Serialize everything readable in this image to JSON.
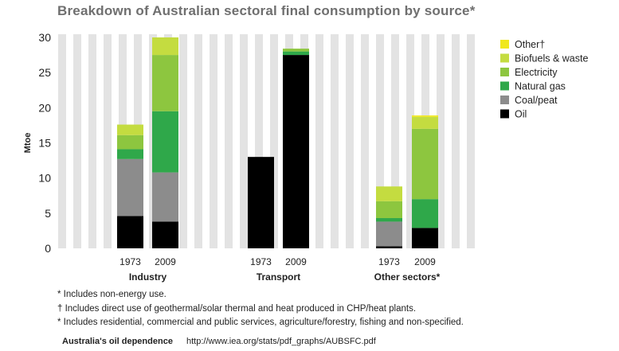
{
  "chart_data": {
    "type": "bar",
    "stacked": true,
    "title": "Breakdown of Australian sectoral final consumption by source*",
    "ylabel": "Mtoe",
    "ylim": [
      0,
      30
    ],
    "yticks": [
      0,
      5,
      10,
      15,
      20,
      25,
      30
    ],
    "groups": [
      "Industry",
      "Transport",
      "Other sectors*"
    ],
    "bar_labels": [
      "1973",
      "2009"
    ],
    "series": [
      {
        "name": "Oil",
        "color": "#000000",
        "values": [
          [
            4.6,
            3.8
          ],
          [
            13.0,
            27.5
          ],
          [
            0.3,
            2.9
          ]
        ]
      },
      {
        "name": "Coal/peat",
        "color": "#8c8c8c",
        "values": [
          [
            8.1,
            7.0
          ],
          [
            0,
            0
          ],
          [
            3.5,
            0
          ]
        ]
      },
      {
        "name": "Natural gas",
        "color": "#2fa84a",
        "values": [
          [
            1.4,
            8.7
          ],
          [
            0,
            0.5
          ],
          [
            0.5,
            4.1
          ]
        ]
      },
      {
        "name": "Electricity",
        "color": "#8dc63f",
        "values": [
          [
            2.0,
            8.0
          ],
          [
            0,
            0.4
          ],
          [
            2.4,
            10.0
          ]
        ]
      },
      {
        "name": "Biofuels & waste",
        "color": "#c4dc40",
        "values": [
          [
            1.5,
            2.9
          ],
          [
            0,
            0
          ],
          [
            2.1,
            1.7
          ]
        ]
      },
      {
        "name": "Other†",
        "color": "#f0e81e",
        "values": [
          [
            0,
            0
          ],
          [
            0,
            0
          ],
          [
            0,
            0.2
          ]
        ]
      }
    ],
    "legend_position": "right",
    "grid": "vertical stripes",
    "legend_order": [
      "Other†",
      "Biofuels & waste",
      "Electricity",
      "Natural gas",
      "Coal/peat",
      "Oil"
    ]
  },
  "notes": [
    "* Includes non-energy use.",
    "† Includes direct use of geothermal/solar thermal and heat produced in CHP/heat plants.",
    "* Includes residential, commercial and public services, agriculture/forestry, fishing and non-specified."
  ],
  "source": {
    "name": "Australia's oil dependence",
    "url": "http://www.iea.org/stats/pdf_graphs/AUBSFC.pdf"
  }
}
